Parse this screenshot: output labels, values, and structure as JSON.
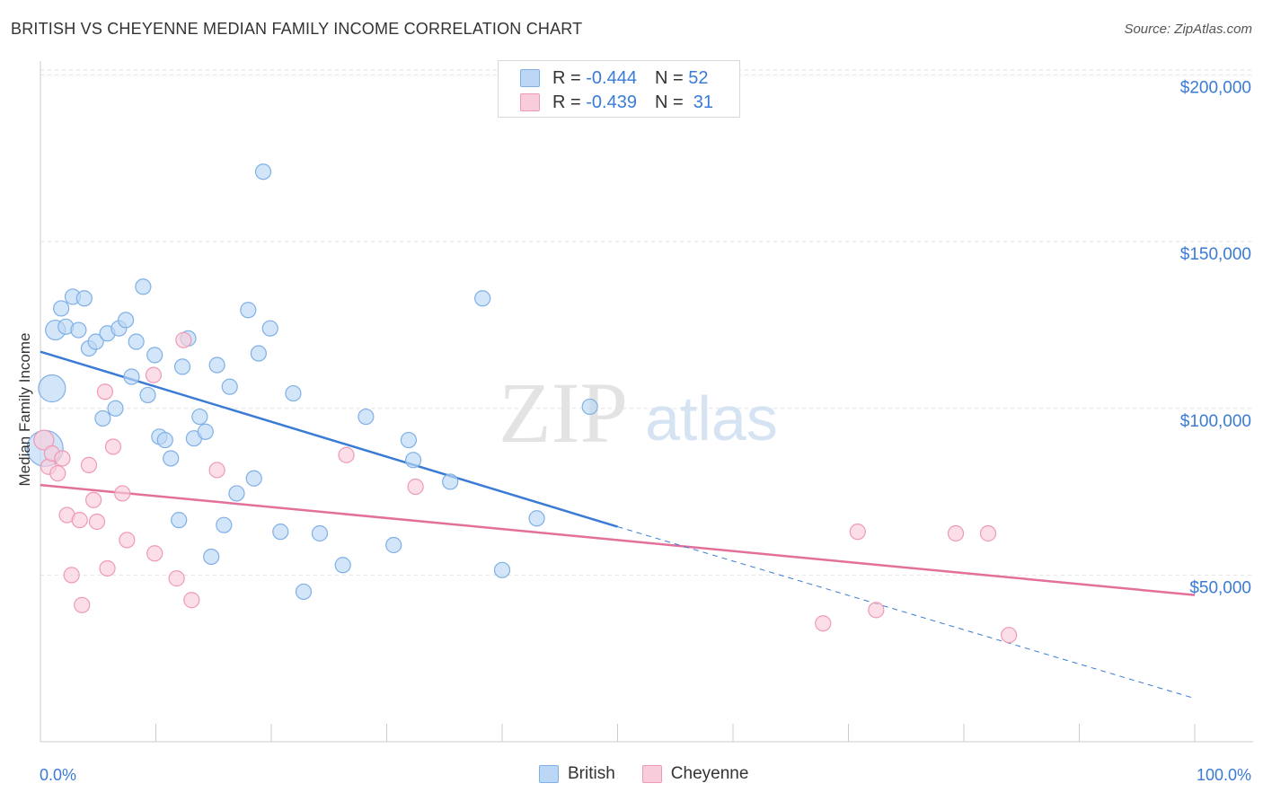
{
  "header": {
    "title": "BRITISH VS CHEYENNE MEDIAN FAMILY INCOME CORRELATION CHART",
    "source": "Source: ZipAtlas.com"
  },
  "watermark": {
    "zip": "ZIP",
    "atlas": "atlas"
  },
  "stats": {
    "british": {
      "r_label": "R =",
      "r_value": "-0.444",
      "n_label": "N =",
      "n_value": "52"
    },
    "cheyenne": {
      "r_label": "R =",
      "r_value": "-0.439",
      "n_label": "N =",
      "n_value": "31"
    }
  },
  "legend": {
    "british": "British",
    "cheyenne": "Cheyenne"
  },
  "colors": {
    "british_fill": "#bcd7f5",
    "british_stroke": "#7fb0e6",
    "british_line": "#3a7bd5",
    "cheyenne_fill": "#f9ccdb",
    "cheyenne_stroke": "#ee9ab6",
    "cheyenne_line": "#e3709a",
    "axis_label": "#3a7bd5"
  },
  "chart_data": {
    "type": "scatter",
    "title": "BRITISH VS CHEYENNE MEDIAN FAMILY INCOME CORRELATION CHART",
    "xlabel": "",
    "ylabel": "Median Family Income",
    "xlim": [
      0,
      100
    ],
    "ylim": [
      0,
      205000
    ],
    "x_tick_labels": [
      "0.0%",
      "100.0%"
    ],
    "y_ticks": [
      50000,
      100000,
      150000,
      200000
    ],
    "y_tick_labels": [
      "$50,000",
      "$100,000",
      "$150,000",
      "$200,000"
    ],
    "grid": true,
    "legend_position": "bottom",
    "series": [
      {
        "name": "British",
        "trend": {
          "x0": 0,
          "y0": 117000,
          "x1": 50,
          "y1": 64500,
          "dash_to_x": 100,
          "dash_to_y": 13000
        },
        "points": [
          {
            "x": 0.4,
            "y": 88000,
            "size": "xl"
          },
          {
            "x": 1.0,
            "y": 106000,
            "size": "l"
          },
          {
            "x": 1.3,
            "y": 123500,
            "size": "m"
          },
          {
            "x": 1.8,
            "y": 130000,
            "size": "s"
          },
          {
            "x": 2.2,
            "y": 124500,
            "size": "s"
          },
          {
            "x": 2.8,
            "y": 133500,
            "size": "s"
          },
          {
            "x": 3.3,
            "y": 123500,
            "size": "s"
          },
          {
            "x": 3.8,
            "y": 133000,
            "size": "s"
          },
          {
            "x": 4.2,
            "y": 118000,
            "size": "s"
          },
          {
            "x": 4.8,
            "y": 120000,
            "size": "s"
          },
          {
            "x": 5.4,
            "y": 97000,
            "size": "s"
          },
          {
            "x": 5.8,
            "y": 122500,
            "size": "s"
          },
          {
            "x": 6.5,
            "y": 100000,
            "size": "s"
          },
          {
            "x": 6.8,
            "y": 124000,
            "size": "s"
          },
          {
            "x": 7.4,
            "y": 126500,
            "size": "s"
          },
          {
            "x": 7.9,
            "y": 109500,
            "size": "s"
          },
          {
            "x": 8.3,
            "y": 120000,
            "size": "s"
          },
          {
            "x": 8.9,
            "y": 136500,
            "size": "s"
          },
          {
            "x": 9.3,
            "y": 104000,
            "size": "s"
          },
          {
            "x": 9.9,
            "y": 116000,
            "size": "s"
          },
          {
            "x": 10.3,
            "y": 91500,
            "size": "s"
          },
          {
            "x": 10.8,
            "y": 90500,
            "size": "s"
          },
          {
            "x": 11.3,
            "y": 85000,
            "size": "s"
          },
          {
            "x": 12.0,
            "y": 66500,
            "size": "s"
          },
          {
            "x": 12.3,
            "y": 112500,
            "size": "s"
          },
          {
            "x": 12.8,
            "y": 121000,
            "size": "s"
          },
          {
            "x": 13.3,
            "y": 91000,
            "size": "s"
          },
          {
            "x": 13.8,
            "y": 97500,
            "size": "s"
          },
          {
            "x": 14.3,
            "y": 93000,
            "size": "s"
          },
          {
            "x": 14.8,
            "y": 55500,
            "size": "s"
          },
          {
            "x": 15.3,
            "y": 113000,
            "size": "s"
          },
          {
            "x": 15.9,
            "y": 65000,
            "size": "s"
          },
          {
            "x": 16.4,
            "y": 106500,
            "size": "s"
          },
          {
            "x": 17.0,
            "y": 74500,
            "size": "s"
          },
          {
            "x": 18.0,
            "y": 129500,
            "size": "s"
          },
          {
            "x": 18.5,
            "y": 79000,
            "size": "s"
          },
          {
            "x": 18.9,
            "y": 116500,
            "size": "s"
          },
          {
            "x": 19.3,
            "y": 171000,
            "size": "s"
          },
          {
            "x": 19.9,
            "y": 124000,
            "size": "s"
          },
          {
            "x": 20.8,
            "y": 63000,
            "size": "s"
          },
          {
            "x": 21.9,
            "y": 104500,
            "size": "s"
          },
          {
            "x": 22.8,
            "y": 45000,
            "size": "s"
          },
          {
            "x": 24.2,
            "y": 62500,
            "size": "s"
          },
          {
            "x": 26.2,
            "y": 53000,
            "size": "s"
          },
          {
            "x": 28.2,
            "y": 97500,
            "size": "s"
          },
          {
            "x": 30.6,
            "y": 59000,
            "size": "s"
          },
          {
            "x": 31.9,
            "y": 90500,
            "size": "s"
          },
          {
            "x": 32.3,
            "y": 84500,
            "size": "s"
          },
          {
            "x": 35.5,
            "y": 78000,
            "size": "s"
          },
          {
            "x": 38.3,
            "y": 133000,
            "size": "s"
          },
          {
            "x": 40.0,
            "y": 51500,
            "size": "s"
          },
          {
            "x": 43.0,
            "y": 67000,
            "size": "s"
          },
          {
            "x": 47.6,
            "y": 100500,
            "size": "s"
          }
        ]
      },
      {
        "name": "Cheyenne",
        "trend": {
          "x0": 0,
          "y0": 77000,
          "x1": 100,
          "y1": 44000
        },
        "points": [
          {
            "x": 0.3,
            "y": 90500,
            "size": "m"
          },
          {
            "x": 0.7,
            "y": 82500,
            "size": "s"
          },
          {
            "x": 1.0,
            "y": 86500,
            "size": "s"
          },
          {
            "x": 1.5,
            "y": 80500,
            "size": "s"
          },
          {
            "x": 1.9,
            "y": 85000,
            "size": "s"
          },
          {
            "x": 2.3,
            "y": 68000,
            "size": "s"
          },
          {
            "x": 2.7,
            "y": 50000,
            "size": "s"
          },
          {
            "x": 3.4,
            "y": 66500,
            "size": "s"
          },
          {
            "x": 3.6,
            "y": 41000,
            "size": "s"
          },
          {
            "x": 4.2,
            "y": 83000,
            "size": "s"
          },
          {
            "x": 4.6,
            "y": 72500,
            "size": "s"
          },
          {
            "x": 4.9,
            "y": 66000,
            "size": "s"
          },
          {
            "x": 5.6,
            "y": 105000,
            "size": "s"
          },
          {
            "x": 5.8,
            "y": 52000,
            "size": "s"
          },
          {
            "x": 6.3,
            "y": 88500,
            "size": "s"
          },
          {
            "x": 7.1,
            "y": 74500,
            "size": "s"
          },
          {
            "x": 7.5,
            "y": 60500,
            "size": "s"
          },
          {
            "x": 9.8,
            "y": 110000,
            "size": "s"
          },
          {
            "x": 9.9,
            "y": 56500,
            "size": "s"
          },
          {
            "x": 11.8,
            "y": 49000,
            "size": "s"
          },
          {
            "x": 12.4,
            "y": 120500,
            "size": "s"
          },
          {
            "x": 13.1,
            "y": 42500,
            "size": "s"
          },
          {
            "x": 15.3,
            "y": 81500,
            "size": "s"
          },
          {
            "x": 26.5,
            "y": 86000,
            "size": "s"
          },
          {
            "x": 32.5,
            "y": 76500,
            "size": "s"
          },
          {
            "x": 67.8,
            "y": 35500,
            "size": "s"
          },
          {
            "x": 70.8,
            "y": 63000,
            "size": "s"
          },
          {
            "x": 72.4,
            "y": 39500,
            "size": "s"
          },
          {
            "x": 79.3,
            "y": 62500,
            "size": "s"
          },
          {
            "x": 82.1,
            "y": 62500,
            "size": "s"
          },
          {
            "x": 83.9,
            "y": 32000,
            "size": "s"
          }
        ]
      }
    ]
  }
}
